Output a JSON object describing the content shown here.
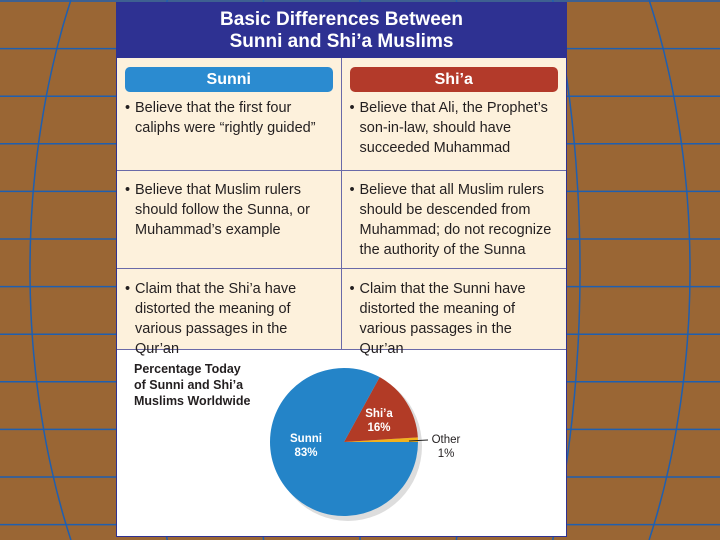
{
  "title_line1": "Basic Differences Between",
  "title_line2": "Sunni and Shi’a Muslims",
  "columns": [
    {
      "label": "Sunni",
      "color": "#2b8bd0"
    },
    {
      "label": "Shi’a",
      "color": "#b33a2a"
    }
  ],
  "rows": [
    [
      "Believe that the first four caliphs were “rightly guided”",
      "Believe that Ali, the Prophet’s son-in-law, should have succeeded Muhammad"
    ],
    [
      "Believe that Muslim rulers should follow the Sunna, or Muhammad’s example",
      "Believe that all Muslim rulers should be descended from Muhammad; do not recognize the authority of the Sunna"
    ],
    [
      "Claim that the Shi’a have distorted the meaning of various passages in the Qur’an",
      "Claim that the Sunni have distorted the meaning of various passages in the Qur’an"
    ]
  ],
  "chart_data": {
    "type": "pie",
    "title": "Percentage Today of Sunni and Shi’a Muslims Worldwide",
    "slices": [
      {
        "label": "Sunni",
        "value": 83,
        "display": "83%",
        "color": "#2484c8"
      },
      {
        "label": "Shi’a",
        "value": 16,
        "display": "16%",
        "color": "#b23b26"
      },
      {
        "label": "Other",
        "value": 1,
        "display": "1%",
        "color": "#f2b21c"
      }
    ]
  },
  "colors": {
    "background": "#9a6634",
    "grid_lines": "#1f5fb0",
    "header": "#2e3192",
    "cell_bg": "#fdf1dc"
  }
}
